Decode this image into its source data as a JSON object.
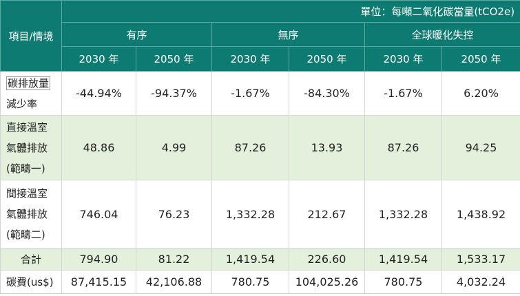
{
  "unit_label": "單位：每噸二氧化碳當量(tCO2e)",
  "corner_label": "項目/情境",
  "scenarios": [
    "有序",
    "無序",
    "全球暖化失控"
  ],
  "years": [
    "2030 年",
    "2050 年",
    "2030 年",
    "2050 年",
    "2030 年",
    "2050 年"
  ],
  "rows": [
    {
      "label_lines": [
        "碳排放量",
        "減少率"
      ],
      "values": [
        "-44.94%",
        "-94.37%",
        "-1.67%",
        "-84.30%",
        "-1.67%",
        "6.20%"
      ]
    },
    {
      "label_lines": [
        "直接溫室",
        "氣體排放",
        "(範疇一)"
      ],
      "values": [
        "48.86",
        "4.99",
        "87.26",
        "13.93",
        "87.26",
        "94.25"
      ]
    },
    {
      "label_lines": [
        "間接溫室",
        "氣體排放",
        "(範疇二)"
      ],
      "values": [
        "746.04",
        "76.23",
        "1,332.28",
        "212.67",
        "1,332.28",
        "1,438.92"
      ]
    },
    {
      "label_lines": [
        "合計"
      ],
      "values": [
        "794.90",
        "81.22",
        "1,419.54",
        "226.60",
        "1,419.54",
        "1,533.17"
      ]
    },
    {
      "label_lines": [
        "碳費(us$)"
      ],
      "values": [
        "87,415.15",
        "42,106.88",
        "780.75",
        "104,025.26",
        "780.75",
        "4,032.24"
      ]
    }
  ],
  "colors": {
    "header_bg": "#0e7b72",
    "header_text": "#ffffff",
    "row_green": "#e3f0dc",
    "row_white": "#ffffff",
    "grid": "#d4d4d4"
  }
}
